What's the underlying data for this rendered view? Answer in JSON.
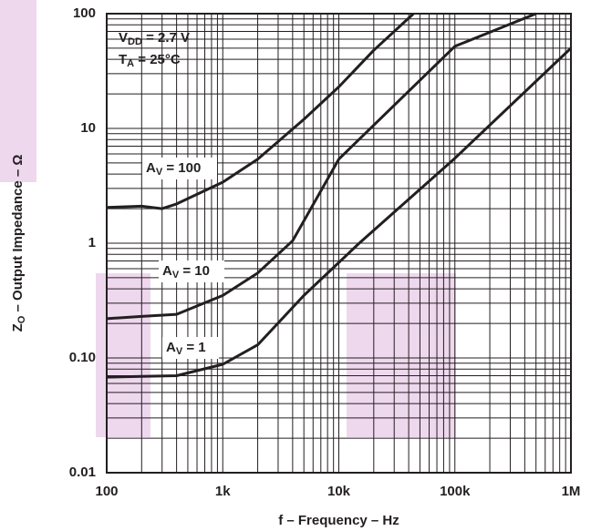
{
  "chart_data": {
    "type": "line",
    "log_x": true,
    "log_y": true,
    "grid": true,
    "minor_grid": true,
    "x_label": {
      "text": "f – Frequency – Hz"
    },
    "y_label": {
      "text": "Z",
      "sub": "O",
      "after": " – Output Impedance – Ω"
    },
    "annotations": [
      {
        "text": "V",
        "sub": "DD",
        "after": " = 2.7 V"
      },
      {
        "text": "T",
        "sub": "A",
        "after": " = 25°C"
      },
      {
        "text": "A",
        "sub": "V",
        "after": " = 100"
      },
      {
        "text": "A",
        "sub": "V",
        "after": " = 10"
      },
      {
        "text": "A",
        "sub": "V",
        "after": " = 1"
      }
    ],
    "xlim": [
      100,
      1000000
    ],
    "ylim": [
      0.01,
      100
    ],
    "xticks": [
      100,
      {
        "value": 1000,
        "label": "1k"
      },
      {
        "value": 10000,
        "label": "10k"
      },
      {
        "value": 100000,
        "label": "100k"
      },
      {
        "value": 1000000,
        "label": "1M"
      }
    ],
    "yticks": [
      0.01,
      {
        "value": 0.1,
        "label": "0.10"
      },
      1,
      10,
      100
    ],
    "series": [
      {
        "name": "AV = 100",
        "color": "#231f20",
        "x": [
          100,
          200,
          300,
          400,
          1000,
          2000,
          5000,
          10000,
          20000,
          44000
        ],
        "values": [
          2.05,
          2.1,
          2.0,
          2.2,
          3.4,
          5.4,
          12,
          23,
          48,
          100
        ]
      },
      {
        "name": "AV = 10",
        "color": "#231f20",
        "x": [
          100,
          200,
          400,
          1000,
          2000,
          4000,
          10000,
          100000,
          500000
        ],
        "values": [
          0.22,
          0.23,
          0.24,
          0.35,
          0.55,
          1.05,
          5.4,
          52,
          100
        ]
      },
      {
        "name": "AV = 1",
        "color": "#231f20",
        "x": [
          100,
          200,
          400,
          1000,
          2000,
          5000,
          15000,
          100000,
          1000000
        ],
        "values": [
          0.068,
          0.069,
          0.07,
          0.088,
          0.13,
          0.35,
          1.0,
          5.5,
          50
        ]
      }
    ]
  }
}
